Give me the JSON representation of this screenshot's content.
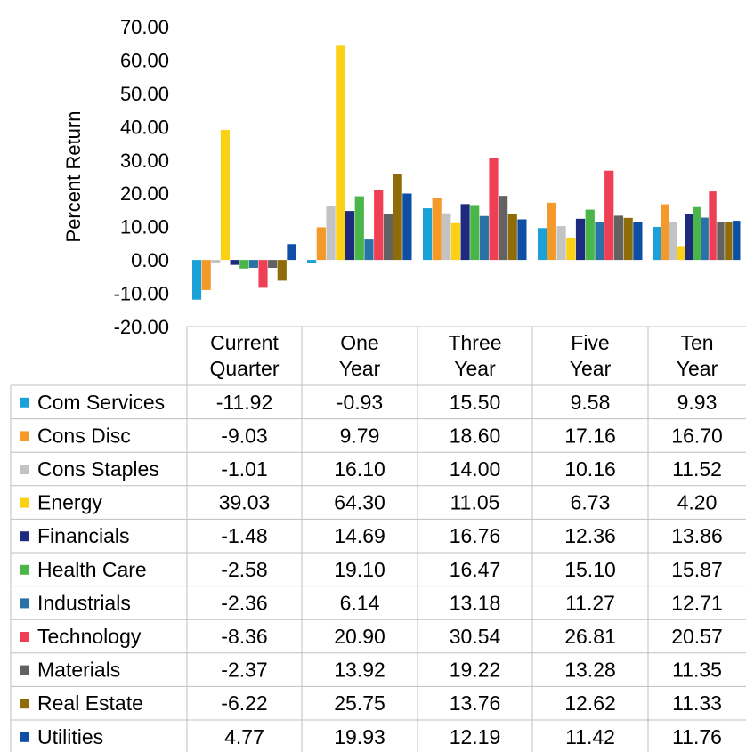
{
  "chart_data": {
    "type": "bar",
    "ylabel": "Percent Return",
    "ylim": [
      -20,
      70
    ],
    "yticks": [
      "70.00",
      "60.00",
      "50.00",
      "40.00",
      "30.00",
      "20.00",
      "10.00",
      "0.00",
      "-10.00",
      "-20.00"
    ],
    "yticks_values": [
      70,
      60,
      50,
      40,
      30,
      20,
      10,
      0,
      -10,
      -20
    ],
    "grid": false,
    "legend": "data-table-below",
    "categories": [
      [
        "Current",
        "Quarter"
      ],
      [
        "One",
        "Year"
      ],
      [
        "Three",
        "Year"
      ],
      [
        "Five",
        "Year"
      ],
      [
        "Ten",
        "Year"
      ]
    ],
    "series": [
      {
        "name": "Com Services",
        "color": "#1ba1d8",
        "values": [
          -11.92,
          -0.93,
          15.5,
          9.58,
          9.93
        ],
        "labels": [
          "-11.92",
          "-0.93",
          "15.50",
          "9.58",
          "9.93"
        ]
      },
      {
        "name": "Cons Disc",
        "color": "#f39a2b",
        "values": [
          -9.03,
          9.79,
          18.6,
          17.16,
          16.7
        ],
        "labels": [
          "-9.03",
          "9.79",
          "18.60",
          "17.16",
          "16.70"
        ]
      },
      {
        "name": "Cons Staples",
        "color": "#c3c3c3",
        "values": [
          -1.01,
          16.1,
          14.0,
          10.16,
          11.52
        ],
        "labels": [
          "-1.01",
          "16.10",
          "14.00",
          "10.16",
          "11.52"
        ]
      },
      {
        "name": "Energy",
        "color": "#fbd116",
        "values": [
          39.03,
          64.3,
          11.05,
          6.73,
          4.2
        ],
        "labels": [
          "39.03",
          "64.30",
          "11.05",
          "6.73",
          "4.20"
        ]
      },
      {
        "name": "Financials",
        "color": "#1e2a7e",
        "values": [
          -1.48,
          14.69,
          16.76,
          12.36,
          13.86
        ],
        "labels": [
          "-1.48",
          "14.69",
          "16.76",
          "12.36",
          "13.86"
        ]
      },
      {
        "name": "Health Care",
        "color": "#4ab548",
        "values": [
          -2.58,
          19.1,
          16.47,
          15.1,
          15.87
        ],
        "labels": [
          "-2.58",
          "19.10",
          "16.47",
          "15.10",
          "15.87"
        ]
      },
      {
        "name": "Industrials",
        "color": "#2872a5",
        "values": [
          -2.36,
          6.14,
          13.18,
          11.27,
          12.71
        ],
        "labels": [
          "-2.36",
          "6.14",
          "13.18",
          "11.27",
          "12.71"
        ]
      },
      {
        "name": "Technology",
        "color": "#ee3f55",
        "values": [
          -8.36,
          20.9,
          30.54,
          26.81,
          20.57
        ],
        "labels": [
          "-8.36",
          "20.90",
          "30.54",
          "26.81",
          "20.57"
        ]
      },
      {
        "name": "Materials",
        "color": "#626262",
        "values": [
          -2.37,
          13.92,
          19.22,
          13.28,
          11.35
        ],
        "labels": [
          "-2.37",
          "13.92",
          "19.22",
          "13.28",
          "11.35"
        ]
      },
      {
        "name": "Real Estate",
        "color": "#8f6c0a",
        "values": [
          -6.22,
          25.75,
          13.76,
          12.62,
          11.33
        ],
        "labels": [
          "-6.22",
          "25.75",
          "13.76",
          "12.62",
          "11.33"
        ]
      },
      {
        "name": "Utilities",
        "color": "#0e4fa6",
        "values": [
          4.77,
          19.93,
          12.19,
          11.42,
          11.76
        ],
        "labels": [
          "4.77",
          "19.93",
          "12.19",
          "11.42",
          "11.76"
        ]
      }
    ]
  }
}
